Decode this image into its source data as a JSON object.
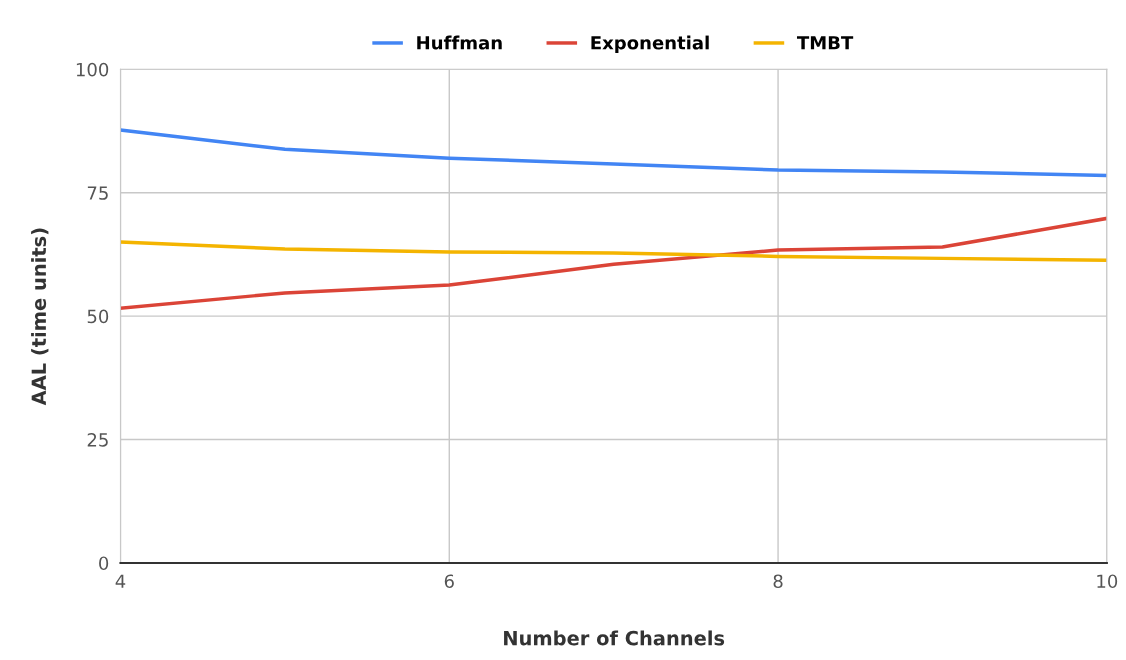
{
  "chart_data": {
    "type": "line",
    "xlabel": "Number of Channels",
    "ylabel": "AAL (time units)",
    "x": [
      4,
      5,
      6,
      7,
      8,
      9,
      10
    ],
    "series": [
      {
        "name": "Huffman",
        "color": "#4285f4",
        "values": [
          87.7,
          83.8,
          82.0,
          80.8,
          79.6,
          79.2,
          78.5
        ]
      },
      {
        "name": "Exponential",
        "color": "#db4437",
        "values": [
          51.6,
          54.7,
          56.3,
          60.5,
          63.4,
          64.0,
          69.8
        ]
      },
      {
        "name": "TMBT",
        "color": "#f4b400",
        "values": [
          65.0,
          63.6,
          63.0,
          62.8,
          62.1,
          61.7,
          61.3
        ]
      }
    ],
    "xlim": [
      4,
      10
    ],
    "xticks": [
      4,
      6,
      8,
      10
    ],
    "ylim": [
      0,
      100
    ],
    "yticks": [
      0,
      25,
      50,
      75,
      100
    ],
    "grid": true,
    "legend": "top",
    "marker": "none",
    "line_style": "solid"
  }
}
